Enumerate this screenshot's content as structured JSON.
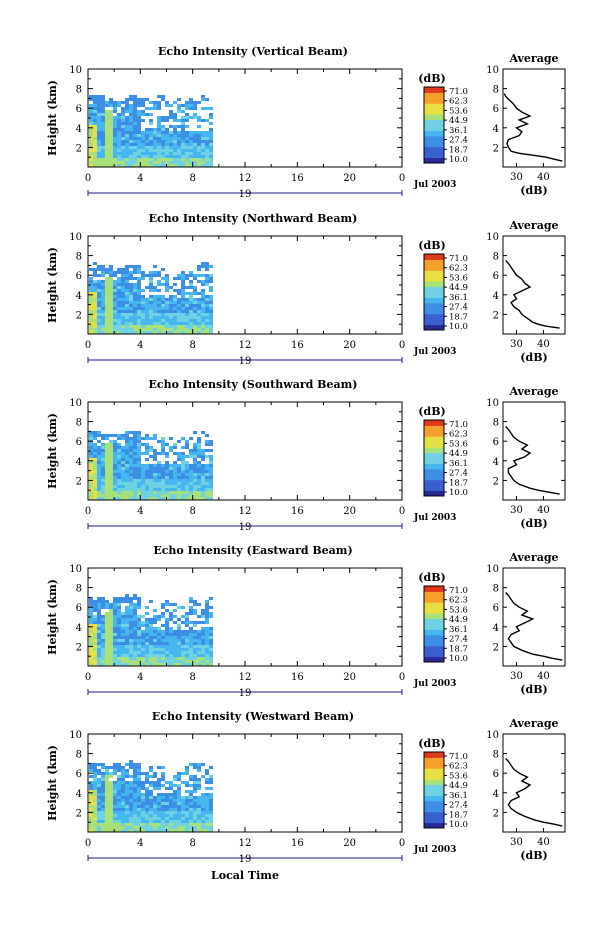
{
  "figure": {
    "xaxis_title": "Local Time",
    "date_label": "Jul 2003",
    "x_ticks": [
      "0",
      "4",
      "8",
      "12",
      "16",
      "20",
      "0"
    ],
    "day_label": "19",
    "y_ticks": [
      "10",
      "8",
      "6",
      "4",
      "2"
    ],
    "ylabel": "Height (km)",
    "cbar_unit": "(dB)",
    "cbar_ticks": [
      "71.0",
      "62.3",
      "53.6",
      "44.9",
      "36.1",
      "27.4",
      "18.7",
      "10.0"
    ],
    "avg_title": "Average",
    "avg_xlabel": "(dB)",
    "avg_x_ticks": [
      "30",
      "40"
    ],
    "avg_y_ticks": [
      "10",
      "8",
      "6",
      "4",
      "2"
    ]
  },
  "colors": {
    "colormap": [
      "#2a2a96",
      "#3a5fd0",
      "#3d8fe6",
      "#45b6ef",
      "#6fd2e3",
      "#a8e07a",
      "#e6e042",
      "#f5a02c",
      "#e03a1e"
    ]
  },
  "chart_data": [
    {
      "type": "heatmap",
      "title": "Echo Intensity (Vertical Beam)",
      "xlabel": "",
      "ylabel": "Height (km)",
      "xlim": [
        0,
        24
      ],
      "ylim": [
        0,
        10
      ],
      "data_extent_hours": [
        0,
        9.4
      ],
      "top_height_km": [
        7.6,
        7.4,
        7.2,
        7.6,
        7.3,
        7.5,
        7.1,
        7.3,
        7.4,
        7.6
      ],
      "colorbar": {
        "label": "(dB)",
        "range": [
          10.0,
          71.0
        ]
      },
      "average_profile": {
        "title": "Average",
        "xlabel": "(dB)",
        "xlim": [
          25,
          48
        ],
        "ylim": [
          0,
          10
        ],
        "height_km": [
          0.6,
          0.8,
          1.0,
          1.2,
          1.4,
          1.6,
          2.0,
          2.4,
          2.8,
          3.2,
          3.6,
          4.0,
          4.4,
          4.8,
          5.2,
          5.6,
          6.0,
          6.4,
          6.8,
          7.2,
          7.5
        ],
        "db": [
          47,
          44,
          41,
          36,
          31,
          28,
          27,
          26.5,
          27,
          31,
          32,
          30,
          34,
          31,
          35,
          32,
          30,
          29,
          27.5,
          26,
          25.5
        ]
      }
    },
    {
      "type": "heatmap",
      "title": "Echo Intensity (Northward Beam)",
      "xlabel": "",
      "ylabel": "Height (km)",
      "xlim": [
        0,
        24
      ],
      "ylim": [
        0,
        10
      ],
      "data_extent_hours": [
        0,
        9.4
      ],
      "top_height_km": [
        7.5,
        7.3,
        7.0,
        7.4,
        6.8,
        7.2,
        6.5,
        7.0,
        7.4,
        7.5
      ],
      "colorbar": {
        "label": "(dB)",
        "range": [
          10.0,
          71.0
        ]
      },
      "average_profile": {
        "title": "Average",
        "xlabel": "(dB)",
        "xlim": [
          25,
          48
        ],
        "ylim": [
          0,
          10
        ],
        "height_km": [
          0.6,
          0.8,
          1.0,
          1.2,
          1.6,
          2.0,
          2.4,
          2.8,
          3.2,
          3.6,
          4.0,
          4.4,
          4.8,
          5.2,
          5.6,
          6.0,
          6.4,
          6.8,
          7.2,
          7.5
        ],
        "db": [
          46,
          41,
          38,
          36,
          34,
          32,
          31,
          29,
          28,
          30,
          29,
          32,
          35,
          33,
          32,
          30,
          29,
          28,
          27,
          26
        ]
      }
    },
    {
      "type": "heatmap",
      "title": "Echo Intensity (Southward Beam)",
      "xlabel": "",
      "ylabel": "Height (km)",
      "xlim": [
        0,
        24
      ],
      "ylim": [
        0,
        10
      ],
      "data_extent_hours": [
        0,
        9.4
      ],
      "top_height_km": [
        7.3,
        7.0,
        7.2,
        7.4,
        6.9,
        7.1,
        7.0,
        6.8,
        7.3,
        7.4
      ],
      "colorbar": {
        "label": "(dB)",
        "range": [
          10.0,
          71.0
        ]
      },
      "average_profile": {
        "title": "Average",
        "xlabel": "(dB)",
        "xlim": [
          25,
          48
        ],
        "ylim": [
          0,
          10
        ],
        "height_km": [
          0.6,
          0.8,
          1.0,
          1.2,
          1.6,
          2.0,
          2.4,
          2.8,
          3.2,
          3.6,
          4.0,
          4.4,
          4.8,
          5.2,
          5.6,
          6.0,
          6.4,
          6.8,
          7.2,
          7.5
        ],
        "db": [
          46,
          42,
          38,
          35,
          31,
          29,
          28,
          27,
          27,
          30,
          29,
          33,
          35,
          32,
          34,
          31,
          29,
          28,
          27,
          26
        ]
      }
    },
    {
      "type": "heatmap",
      "title": "Echo Intensity (Eastward Beam)",
      "xlabel": "",
      "ylabel": "Height (km)",
      "xlim": [
        0,
        24
      ],
      "ylim": [
        0,
        10
      ],
      "data_extent_hours": [
        0,
        9.4
      ],
      "top_height_km": [
        7.4,
        7.2,
        7.3,
        7.5,
        6.9,
        7.2,
        7.1,
        7.0,
        7.3,
        7.5
      ],
      "colorbar": {
        "label": "(dB)",
        "range": [
          10.0,
          71.0
        ]
      },
      "average_profile": {
        "title": "Average",
        "xlabel": "(dB)",
        "xlim": [
          25,
          48
        ],
        "ylim": [
          0,
          10
        ],
        "height_km": [
          0.6,
          0.8,
          1.0,
          1.2,
          1.6,
          2.0,
          2.4,
          2.8,
          3.2,
          3.6,
          4.0,
          4.4,
          4.8,
          5.2,
          5.6,
          6.0,
          6.4,
          6.8,
          7.2,
          7.5
        ],
        "db": [
          47,
          43,
          40,
          36,
          32,
          29,
          28,
          27,
          28,
          31,
          30,
          33,
          36,
          32,
          34,
          31,
          29,
          28,
          27,
          26
        ]
      }
    },
    {
      "type": "heatmap",
      "title": "Echo Intensity (Westward Beam)",
      "xlabel": "",
      "ylabel": "Height (km)",
      "xlim": [
        0,
        24
      ],
      "ylim": [
        0,
        10
      ],
      "data_extent_hours": [
        0,
        9.4
      ],
      "top_height_km": [
        7.4,
        7.1,
        7.3,
        7.5,
        7.0,
        7.2,
        6.8,
        7.0,
        7.3,
        7.4
      ],
      "colorbar": {
        "label": "(dB)",
        "range": [
          10.0,
          71.0
        ]
      },
      "average_profile": {
        "title": "Average",
        "xlabel": "(dB)",
        "xlim": [
          25,
          48
        ],
        "ylim": [
          0,
          10
        ],
        "height_km": [
          0.6,
          0.8,
          1.0,
          1.2,
          1.6,
          2.0,
          2.4,
          2.8,
          3.2,
          3.6,
          4.0,
          4.4,
          4.8,
          5.2,
          5.6,
          6.0,
          6.4,
          6.8,
          7.2,
          7.5
        ],
        "db": [
          47,
          44,
          40,
          37,
          33,
          30,
          28,
          27,
          28,
          31,
          30,
          33,
          35,
          32,
          34,
          31,
          29,
          28,
          27,
          26
        ]
      }
    }
  ]
}
